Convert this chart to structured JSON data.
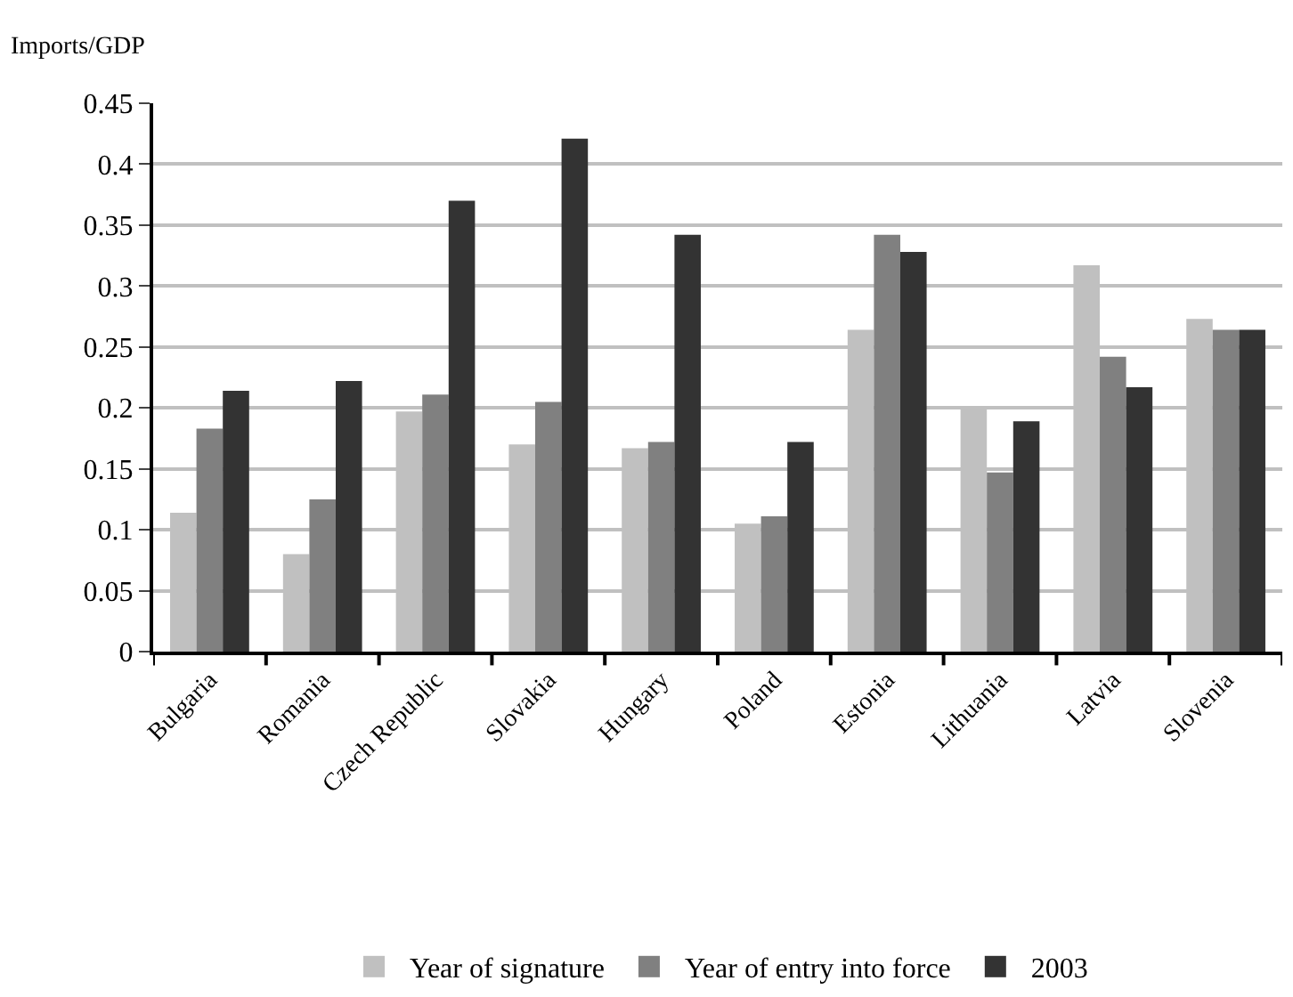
{
  "chart_data": {
    "type": "bar",
    "ylabel": "Imports/GDP",
    "categories": [
      "Bulgaria",
      "Romania",
      "Czech Republic",
      "Slovakia",
      "Hungary",
      "Poland",
      "Estonia",
      "Lithuania",
      "Latvia",
      "Slovenia"
    ],
    "series": [
      {
        "name": "Year of signature",
        "color": "#c0c0c0",
        "values": [
          0.114,
          0.08,
          0.197,
          0.17,
          0.167,
          0.105,
          0.264,
          0.2,
          0.317,
          0.273
        ]
      },
      {
        "name": "Year of entry into force",
        "color": "#808080",
        "values": [
          0.183,
          0.125,
          0.211,
          0.205,
          0.172,
          0.111,
          0.342,
          0.147,
          0.242,
          0.264
        ]
      },
      {
        "name": "2003",
        "color": "#333333",
        "values": [
          0.214,
          0.222,
          0.37,
          0.421,
          0.342,
          0.172,
          0.328,
          0.189,
          0.217,
          0.264
        ]
      }
    ],
    "ylim": [
      0,
      0.45
    ],
    "yticks": [
      0,
      0.05,
      0.1,
      0.15,
      0.2,
      0.25,
      0.3,
      0.35,
      0.4,
      0.45
    ],
    "grid": "y",
    "legend": "bottom"
  }
}
